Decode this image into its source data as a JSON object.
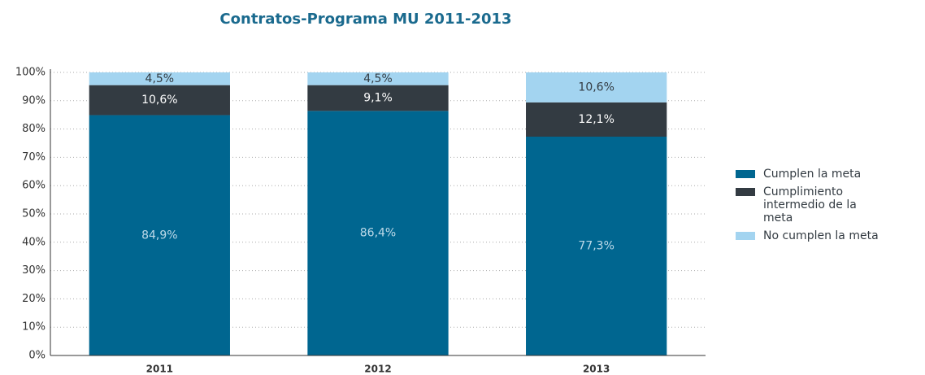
{
  "chart_data": {
    "type": "stacked_bar",
    "title": "Contratos-Programa MU 2011-2013",
    "categories": [
      "2011",
      "2012",
      "2013"
    ],
    "series": [
      {
        "name": "Cumplen la meta",
        "color": "#006690",
        "label_color": "#bcd9e8",
        "values": [
          84.9,
          86.4,
          77.3
        ],
        "value_labels": [
          "84,9%",
          "86,4%",
          "77,3%"
        ]
      },
      {
        "name": "Cumplimiento intermedio de la meta",
        "color": "#333b42",
        "label_color": "#ffffff",
        "values": [
          10.6,
          9.1,
          12.1
        ],
        "value_labels": [
          "10,6%",
          "9,1%",
          "12,1%"
        ]
      },
      {
        "name": "No cumplen la meta",
        "color": "#a3d4f0",
        "label_color": "#333b42",
        "values": [
          4.5,
          4.5,
          10.6
        ],
        "value_labels": [
          "4,5%",
          "4,5%",
          "10,6%"
        ]
      }
    ],
    "ylim": [
      0,
      100
    ],
    "yticks": [
      {
        "value": 0,
        "label": "0%"
      },
      {
        "value": 10,
        "label": "10%"
      },
      {
        "value": 20,
        "label": "20%"
      },
      {
        "value": 30,
        "label": "30%"
      },
      {
        "value": 40,
        "label": "40%"
      },
      {
        "value": 50,
        "label": "50%"
      },
      {
        "value": 60,
        "label": "60%"
      },
      {
        "value": 70,
        "label": "70%"
      },
      {
        "value": 80,
        "label": "80%"
      },
      {
        "value": 90,
        "label": "90%"
      },
      {
        "value": 100,
        "label": "100%"
      }
    ],
    "grid": true,
    "legend": "right"
  }
}
